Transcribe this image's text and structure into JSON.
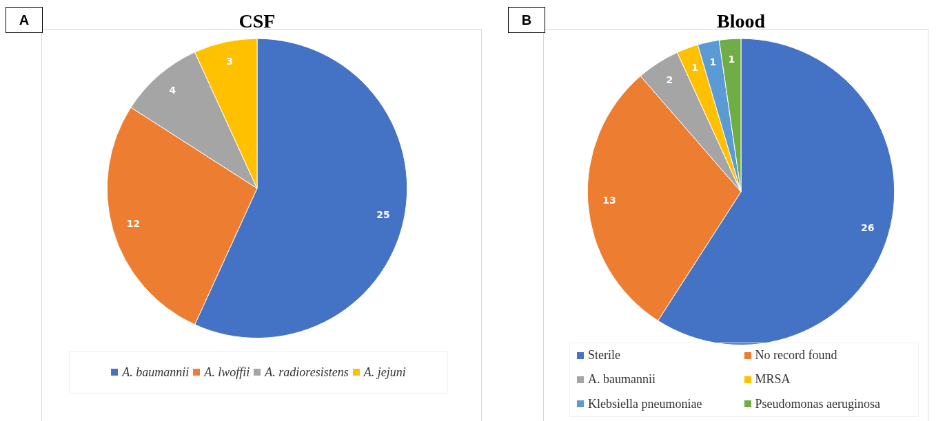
{
  "chart_data": [
    {
      "type": "pie",
      "title": "CSF",
      "categories": [
        "A. baumannii",
        "A. lwoffii",
        "A. radioresistens",
        "A. jejuni"
      ],
      "values": [
        25,
        12,
        4,
        3
      ],
      "colors": [
        "#4472c4",
        "#ed7d31",
        "#a5a5a5",
        "#ffc000"
      ],
      "data_labels": true,
      "legend": "bottom",
      "annotations": [
        "A"
      ]
    },
    {
      "type": "pie",
      "title": "Blood",
      "categories": [
        "Sterile",
        "No record found",
        "A. baumannii",
        "MRSA",
        "Klebsiella pneumoniae",
        "Pseudomonas aeruginosa"
      ],
      "values": [
        26,
        13,
        2,
        1,
        1,
        1
      ],
      "colors": [
        "#4472c4",
        "#ed7d31",
        "#a5a5a5",
        "#ffc000",
        "#5b9bd5",
        "#70ad47"
      ],
      "data_labels": true,
      "legend": "bottom",
      "annotations": [
        "B"
      ]
    }
  ]
}
